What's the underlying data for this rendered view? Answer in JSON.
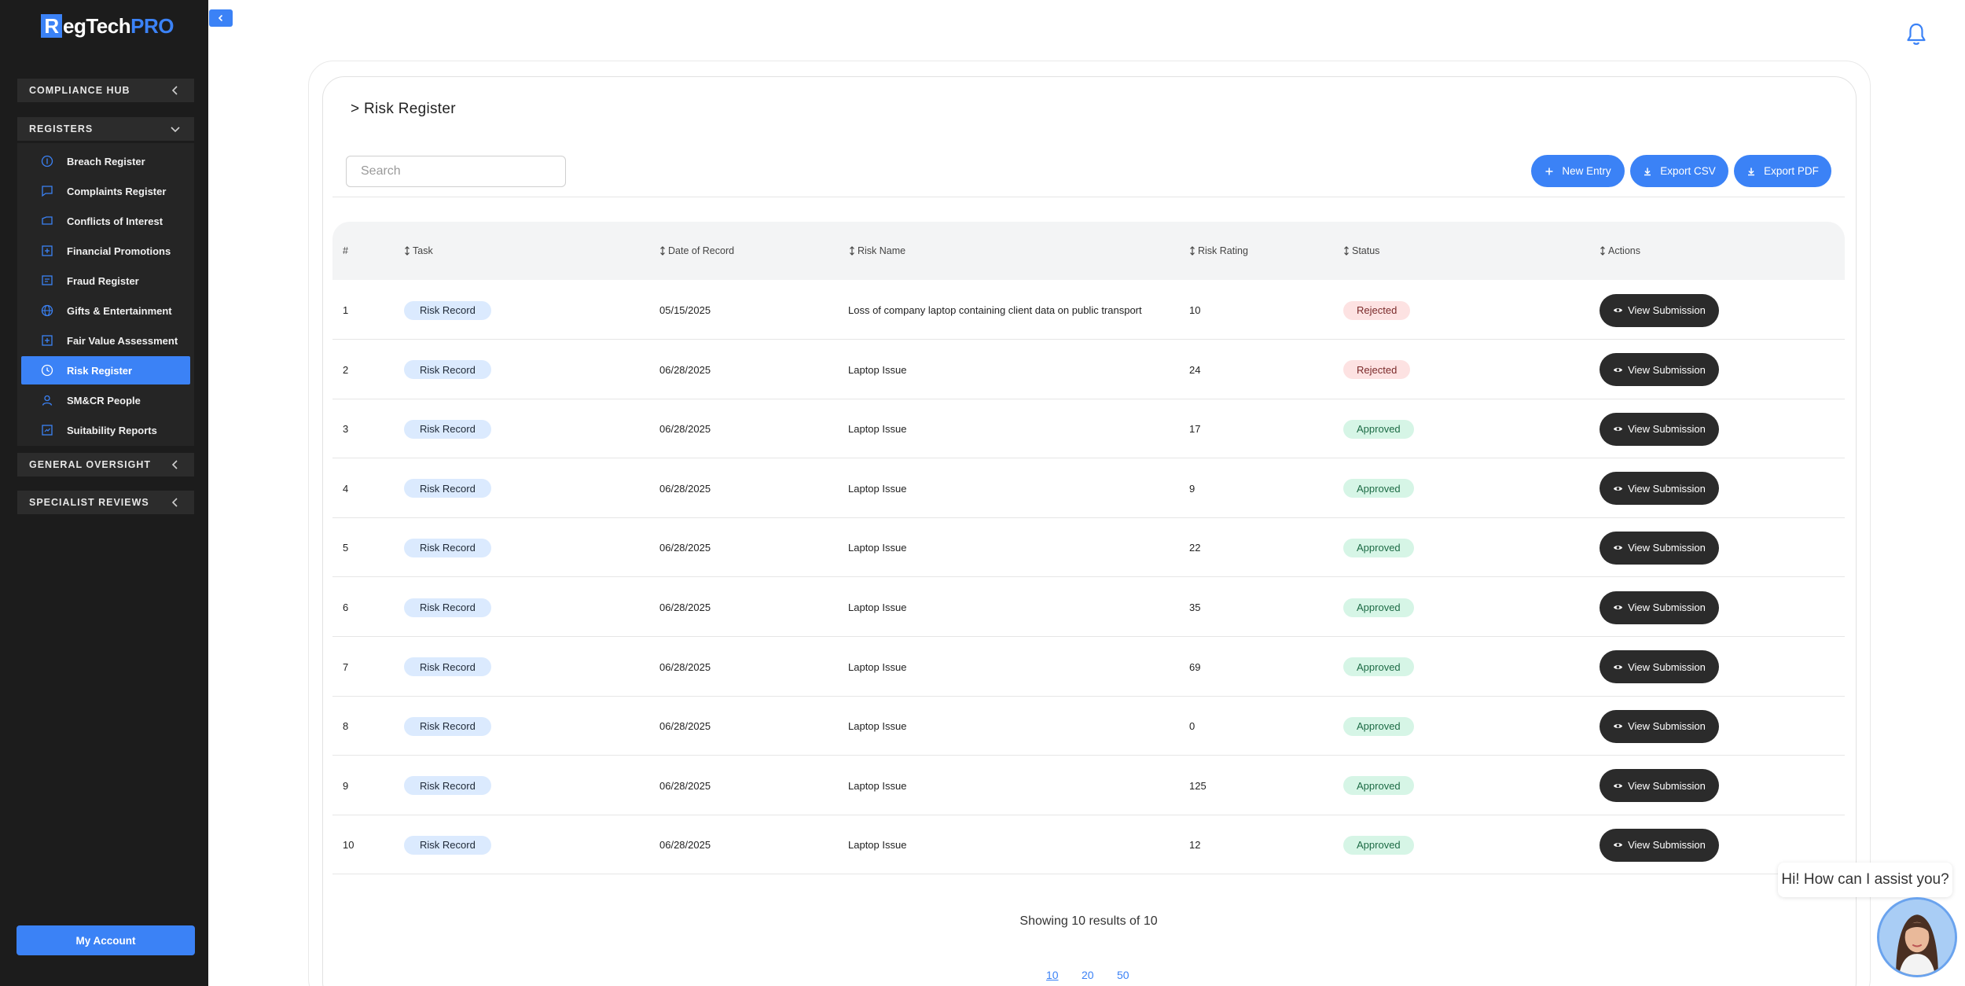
{
  "app": {
    "logo_letter": "R",
    "logo_mid": "egTech",
    "logo_pro": "PRO"
  },
  "sidebar": {
    "sections": [
      {
        "label": "COMPLIANCE HUB"
      },
      {
        "label": "REGISTERS"
      },
      {
        "label": "GENERAL OVERSIGHT"
      },
      {
        "label": "SPECIALIST REVIEWS"
      }
    ],
    "items": [
      {
        "label": "Breach Register",
        "icon": "info-circle-icon"
      },
      {
        "label": "Complaints Register",
        "icon": "message-square-icon"
      },
      {
        "label": "Conflicts of Interest",
        "icon": "tag-icon"
      },
      {
        "label": "Financial Promotions",
        "icon": "plus-square-icon"
      },
      {
        "label": "Fraud Register",
        "icon": "message-square-lines-icon"
      },
      {
        "label": "Gifts & Entertainment",
        "icon": "globe-icon"
      },
      {
        "label": "Fair Value Assessment",
        "icon": "plus-square-icon"
      },
      {
        "label": "Risk Register",
        "icon": "clock-icon",
        "active": true
      },
      {
        "label": "SM&CR People",
        "icon": "user-icon"
      },
      {
        "label": "Suitability Reports",
        "icon": "report-icon"
      }
    ],
    "my_account": "My Account"
  },
  "page": {
    "title": "> Risk Register",
    "search_placeholder": "Search",
    "buttons": {
      "new_entry": "New Entry",
      "export_csv": "Export CSV",
      "export_pdf": "Export PDF"
    }
  },
  "table": {
    "headers": {
      "num": "#",
      "task": "Task",
      "date": "Date of Record",
      "risk_name": "Risk Name",
      "risk_rating": "Risk Rating",
      "status": "Status",
      "actions": "Actions"
    },
    "action_label": "View Submission",
    "rows": [
      {
        "num": "1",
        "task": "Risk Record",
        "date": "05/15/2025",
        "risk_name": "Loss of company laptop containing client data on public transport",
        "rating": "10",
        "status": "Rejected"
      },
      {
        "num": "2",
        "task": "Risk Record",
        "date": "06/28/2025",
        "risk_name": "Laptop Issue",
        "rating": "24",
        "status": "Rejected"
      },
      {
        "num": "3",
        "task": "Risk Record",
        "date": "06/28/2025",
        "risk_name": "Laptop Issue",
        "rating": "17",
        "status": "Approved"
      },
      {
        "num": "4",
        "task": "Risk Record",
        "date": "06/28/2025",
        "risk_name": "Laptop Issue",
        "rating": "9",
        "status": "Approved"
      },
      {
        "num": "5",
        "task": "Risk Record",
        "date": "06/28/2025",
        "risk_name": "Laptop Issue",
        "rating": "22",
        "status": "Approved"
      },
      {
        "num": "6",
        "task": "Risk Record",
        "date": "06/28/2025",
        "risk_name": "Laptop Issue",
        "rating": "35",
        "status": "Approved"
      },
      {
        "num": "7",
        "task": "Risk Record",
        "date": "06/28/2025",
        "risk_name": "Laptop Issue",
        "rating": "69",
        "status": "Approved"
      },
      {
        "num": "8",
        "task": "Risk Record",
        "date": "06/28/2025",
        "risk_name": "Laptop Issue",
        "rating": "0",
        "status": "Approved"
      },
      {
        "num": "9",
        "task": "Risk Record",
        "date": "06/28/2025",
        "risk_name": "Laptop Issue",
        "rating": "125",
        "status": "Approved"
      },
      {
        "num": "10",
        "task": "Risk Record",
        "date": "06/28/2025",
        "risk_name": "Laptop Issue",
        "rating": "12",
        "status": "Approved"
      }
    ]
  },
  "pagination": {
    "summary": "Showing 10 results of 10",
    "page_sizes": [
      "10",
      "20",
      "50"
    ],
    "current": "10"
  },
  "chat": {
    "greeting": "Hi! How can I assist you?"
  },
  "colors": {
    "accent": "#3b82f6",
    "sidebar_bg": "#1c1c1c",
    "rejected_bg": "#fde2e2",
    "approved_bg": "#d6f5e6",
    "task_pill_bg": "#dbeafe"
  }
}
